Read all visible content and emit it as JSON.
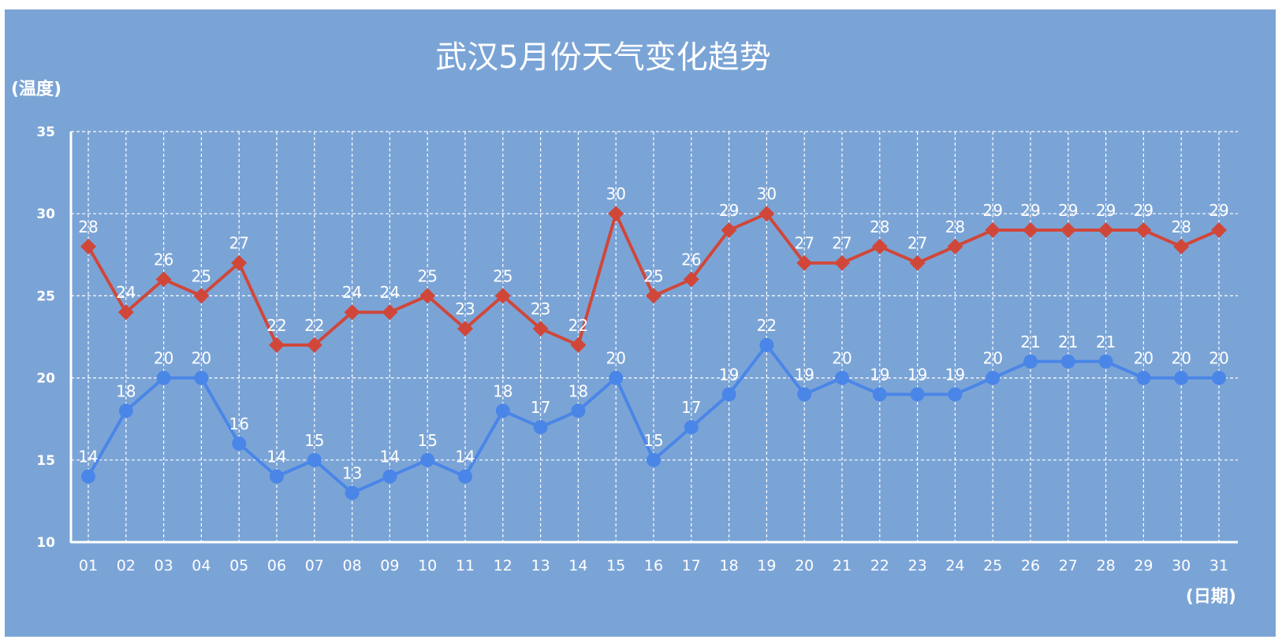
{
  "chart_data": {
    "type": "line",
    "title": "武汉5月份天气变化趋势",
    "ylabel": "(温度)",
    "xlabel": "(日期)",
    "ylim": [
      10,
      35
    ],
    "yticks": [
      10,
      15,
      20,
      25,
      30,
      35
    ],
    "grid": true,
    "categories": [
      "01",
      "02",
      "03",
      "04",
      "05",
      "06",
      "07",
      "08",
      "09",
      "10",
      "11",
      "12",
      "13",
      "14",
      "15",
      "16",
      "17",
      "18",
      "19",
      "20",
      "21",
      "22",
      "23",
      "24",
      "25",
      "26",
      "27",
      "28",
      "29",
      "30",
      "31"
    ],
    "series": [
      {
        "color": "#d0473a",
        "marker": "diamond",
        "values": [
          28,
          24,
          26,
          25,
          27,
          22,
          22,
          24,
          24,
          25,
          23,
          25,
          23,
          22,
          30,
          25,
          26,
          29,
          30,
          27,
          27,
          28,
          27,
          28,
          29,
          29,
          29,
          29,
          29,
          28,
          29
        ]
      },
      {
        "color": "#4a86e8",
        "marker": "circle",
        "values": [
          14,
          18,
          20,
          20,
          16,
          14,
          15,
          13,
          14,
          15,
          14,
          18,
          17,
          18,
          20,
          15,
          17,
          19,
          22,
          19,
          20,
          19,
          19,
          19,
          20,
          21,
          21,
          21,
          20,
          20,
          20
        ]
      }
    ]
  },
  "colors": {
    "background": "#7ba4d6",
    "text": "#ffffff",
    "grid": "#ffffff"
  }
}
